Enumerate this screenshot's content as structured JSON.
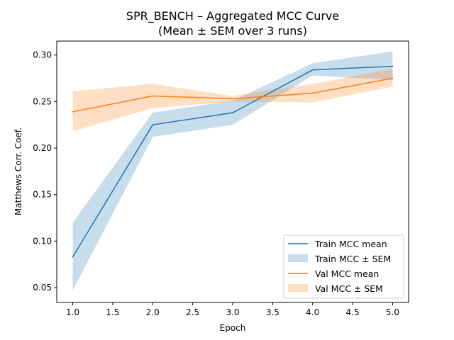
{
  "chart_data": {
    "type": "line",
    "title": "SPR_BENCH – Aggregated MCC Curve",
    "subtitle": "(Mean ± SEM over 3 runs)",
    "xlabel": "Epoch",
    "ylabel": "Matthews Corr. Coef.",
    "xlim": [
      0.8,
      5.2
    ],
    "ylim": [
      0.034,
      0.315
    ],
    "x_ticks": [
      1.0,
      1.5,
      2.0,
      2.5,
      3.0,
      3.5,
      4.0,
      4.5,
      5.0
    ],
    "x_tick_labels": [
      "1.0",
      "1.5",
      "2.0",
      "2.5",
      "3.0",
      "3.5",
      "4.0",
      "4.5",
      "5.0"
    ],
    "y_ticks": [
      0.05,
      0.1,
      0.15,
      0.2,
      0.25,
      0.3
    ],
    "y_tick_labels": [
      "0.05",
      "0.10",
      "0.15",
      "0.20",
      "0.25",
      "0.30"
    ],
    "grid": false,
    "legend_position": "lower-right",
    "x": [
      1,
      2,
      3,
      4,
      5
    ],
    "series": [
      {
        "name": "Train MCC mean",
        "band_name": "Train MCC ± SEM",
        "color": "#1f77b4",
        "values": [
          0.083,
          0.225,
          0.238,
          0.284,
          0.288
        ],
        "lower": [
          0.047,
          0.212,
          0.225,
          0.278,
          0.273
        ],
        "upper": [
          0.12,
          0.238,
          0.251,
          0.291,
          0.304
        ]
      },
      {
        "name": "Val MCC mean",
        "band_name": "Val MCC ± SEM",
        "color": "#ff7f0e",
        "values": [
          0.239,
          0.256,
          0.253,
          0.259,
          0.275
        ],
        "lower": [
          0.218,
          0.243,
          0.25,
          0.249,
          0.266
        ],
        "upper": [
          0.261,
          0.269,
          0.256,
          0.269,
          0.285
        ]
      }
    ]
  }
}
